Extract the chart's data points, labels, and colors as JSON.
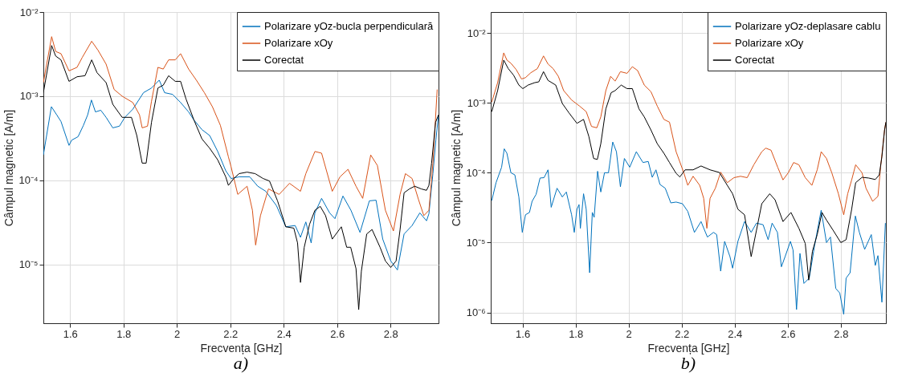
{
  "chart_data": [
    {
      "type": "line",
      "xlabel": "Frecvența [GHz]",
      "ylabel": "Câmpul magnetic [A/m]",
      "annotations": [
        "a)"
      ],
      "log": "y",
      "grid": true,
      "legend": "top right",
      "xlim": [
        1.5,
        2.98
      ],
      "xticks": [
        1.6,
        1.8,
        2,
        2.2,
        2.4,
        2.6,
        2.8
      ],
      "ylim": [
        2e-06,
        0.01
      ],
      "yticks": [
        {
          "value": 1e-05,
          "label": "10⁻⁵"
        },
        {
          "value": 0.0001,
          "label": "10⁻⁴"
        },
        {
          "value": 0.001,
          "label": "10⁻³"
        },
        {
          "value": 0.01,
          "label": "10⁻²"
        }
      ],
      "series": [
        {
          "name": "Polarizare yOz-bucla perpendiculară",
          "color": "#0072bd",
          "x": [
            1.5,
            1.53,
            1.55,
            1.566,
            1.596,
            1.606,
            1.63,
            1.65,
            1.666,
            1.68,
            1.695,
            1.715,
            1.735,
            1.76,
            1.785,
            1.805,
            1.835,
            1.875,
            1.905,
            1.934,
            1.954,
            1.984,
            2.014,
            2.044,
            2.064,
            2.094,
            2.123,
            2.153,
            2.183,
            2.203,
            2.233,
            2.273,
            2.303,
            2.333,
            2.373,
            2.408,
            2.443,
            2.463,
            2.483,
            2.503,
            2.517,
            2.542,
            2.572,
            2.592,
            2.622,
            2.652,
            2.686,
            2.721,
            2.746,
            2.771,
            2.801,
            2.826,
            2.851,
            2.881,
            2.91,
            2.935,
            2.944,
            2.959,
            2.97,
            2.98
          ],
          "values": [
            0.0002,
            0.00075,
            0.0006,
            0.0005,
            0.00026,
            0.0003,
            0.00033,
            0.00045,
            0.0006,
            0.0009,
            0.00065,
            0.00068,
            0.00056,
            0.00042,
            0.00044,
            0.00056,
            0.0007,
            0.0011,
            0.00125,
            0.00155,
            0.0011,
            0.00105,
            0.00084,
            0.00065,
            0.00052,
            0.0004,
            0.00034,
            0.00022,
            0.00013,
            0.000105,
            0.00011,
            0.00011,
            8.5e-05,
            7.4e-05,
            5e-05,
            2.8e-05,
            2.9e-05,
            2.1e-05,
            3.2e-05,
            1.8e-05,
            4.1e-05,
            6.1e-05,
            4.1e-05,
            3.5e-05,
            6.5e-05,
            4.4e-05,
            2.4e-05,
            5.7e-05,
            5.8e-05,
            2e-05,
            1.1e-05,
            8.6e-06,
            2.3e-05,
            2.9e-05,
            4.1e-05,
            3.3e-05,
            4e-05,
            0.00012,
            0.0003,
            0.0006
          ]
        },
        {
          "name": "Polarizare xOy",
          "color": "#d95319",
          "x": [
            1.5,
            1.531,
            1.546,
            1.566,
            1.596,
            1.626,
            1.646,
            1.681,
            1.705,
            1.735,
            1.765,
            1.795,
            1.835,
            1.86,
            1.87,
            1.89,
            1.905,
            1.929,
            1.949,
            1.969,
            1.994,
            2.014,
            2.044,
            2.073,
            2.103,
            2.133,
            2.163,
            2.193,
            2.203,
            2.228,
            2.263,
            2.283,
            2.295,
            2.313,
            2.343,
            2.383,
            2.422,
            2.463,
            2.483,
            2.517,
            2.542,
            2.582,
            2.611,
            2.641,
            2.671,
            2.696,
            2.726,
            2.751,
            2.781,
            2.811,
            2.836,
            2.856,
            2.881,
            2.905,
            2.925,
            2.944,
            2.959,
            2.975
          ],
          "values": [
            0.00145,
            0.0051,
            0.0034,
            0.0032,
            0.002,
            0.0022,
            0.0029,
            0.0045,
            0.0035,
            0.0024,
            0.0012,
            0.001,
            0.00084,
            0.0006,
            0.00042,
            0.00044,
            0.00087,
            0.0022,
            0.0021,
            0.0027,
            0.0027,
            0.0032,
            0.0021,
            0.00155,
            0.0011,
            0.00075,
            0.00045,
            0.00019,
            0.000145,
            6.8e-05,
            8.5e-05,
            4.4e-05,
            1.7e-05,
            3.8e-05,
            7.9e-05,
            6.8e-05,
            9.2e-05,
            7.4e-05,
            0.00012,
            0.00022,
            0.00021,
            7.4e-05,
            0.00011,
            0.000135,
            8.5e-05,
            6.1e-05,
            0.0002,
            0.00015,
            4.4e-05,
            2.5e-05,
            6.8e-05,
            0.00012,
            0.000105,
            5.9e-05,
            3.8e-05,
            4.4e-05,
            0.00016,
            0.0012
          ]
        },
        {
          "name": "Corectat",
          "color": "#000000",
          "x": [
            1.5,
            1.531,
            1.546,
            1.566,
            1.596,
            1.626,
            1.656,
            1.681,
            1.701,
            1.735,
            1.76,
            1.795,
            1.83,
            1.85,
            1.87,
            1.885,
            1.905,
            1.929,
            1.949,
            1.969,
            1.994,
            2.014,
            2.034,
            2.064,
            2.094,
            2.123,
            2.153,
            2.183,
            2.193,
            2.213,
            2.233,
            2.263,
            2.293,
            2.323,
            2.347,
            2.377,
            2.408,
            2.438,
            2.452,
            2.463,
            2.477,
            2.497,
            2.517,
            2.537,
            2.557,
            2.582,
            2.616,
            2.636,
            2.651,
            2.671,
            2.681,
            2.691,
            2.711,
            2.731,
            2.761,
            2.781,
            2.801,
            2.821,
            2.836,
            2.851,
            2.871,
            2.891,
            2.915,
            2.935,
            2.944,
            2.954,
            2.969,
            2.98
          ],
          "values": [
            0.0011,
            0.004,
            0.003,
            0.0027,
            0.0015,
            0.0017,
            0.00175,
            0.0027,
            0.0019,
            0.00145,
            0.0008,
            0.00056,
            0.00056,
            0.00034,
            0.00016,
            0.00016,
            0.00049,
            0.00125,
            0.00135,
            0.00175,
            0.0015,
            0.0015,
            0.00093,
            0.00052,
            0.00031,
            0.00024,
            0.000175,
            0.00011,
            8.7e-05,
            0.000105,
            0.00012,
            0.000125,
            0.00012,
            0.000105,
            9.8e-05,
            5.7e-05,
            2.8e-05,
            2.7e-05,
            1.8e-05,
            6.1e-06,
            1.6e-05,
            3e-05,
            4.4e-05,
            4.9e-05,
            3.8e-05,
            2e-05,
            2.8e-05,
            1.6e-05,
            1.6e-05,
            8.9e-06,
            2.9e-06,
            8.3e-06,
            2.3e-05,
            2.6e-05,
            1.6e-05,
            1.1e-05,
            9.2e-06,
            1.1e-05,
            2.6e-05,
            7.1e-05,
            7.9e-05,
            8.5e-05,
            7.9e-05,
            7.6e-05,
            8.7e-05,
            0.00016,
            0.00049,
            0.0006
          ]
        }
      ]
    },
    {
      "type": "line",
      "xlabel": "Frecvența [GHz]",
      "ylabel": "Câmpul magnetic [A/m]",
      "annotations": [
        "b)"
      ],
      "log": "y",
      "grid": true,
      "legend": "top right",
      "xlim": [
        1.48,
        2.97
      ],
      "xticks": [
        1.6,
        1.8,
        2,
        2.2,
        2.4,
        2.6,
        2.8
      ],
      "ylim": [
        7e-07,
        0.02
      ],
      "yticks": [
        {
          "value": 1e-06,
          "label": "10⁻⁶"
        },
        {
          "value": 1e-05,
          "label": "10⁻⁵"
        },
        {
          "value": 0.0001,
          "label": "10⁻⁴"
        },
        {
          "value": 0.001,
          "label": "10⁻³"
        },
        {
          "value": 0.01,
          "label": "10⁻²"
        }
      ],
      "series": [
        {
          "name": "Polarizare yOz-deplasare cablu",
          "color": "#0072bd",
          "x": [
            1.484,
            1.5,
            1.521,
            1.531,
            1.541,
            1.556,
            1.571,
            1.586,
            1.599,
            1.611,
            1.626,
            1.636,
            1.651,
            1.666,
            1.681,
            1.696,
            1.708,
            1.73,
            1.75,
            1.765,
            1.785,
            1.795,
            1.805,
            1.813,
            1.818,
            1.83,
            1.84,
            1.853,
            1.863,
            1.87,
            1.883,
            1.895,
            1.909,
            1.924,
            1.94,
            1.954,
            1.969,
            1.984,
            2.004,
            2.029,
            2.054,
            2.074,
            2.089,
            2.103,
            2.118,
            2.138,
            2.159,
            2.179,
            2.203,
            2.223,
            2.248,
            2.273,
            2.297,
            2.32,
            2.332,
            2.347,
            2.362,
            2.382,
            2.392,
            2.412,
            2.437,
            2.462,
            2.482,
            2.507,
            2.526,
            2.541,
            2.561,
            2.576,
            2.59,
            2.61,
            2.62,
            2.633,
            2.646,
            2.661,
            2.681,
            2.701,
            2.726,
            2.746,
            2.761,
            2.781,
            2.796,
            2.811,
            2.82,
            2.835,
            2.855,
            2.87,
            2.89,
            2.915,
            2.93,
            2.94,
            2.955,
            2.968
          ],
          "values": [
            4e-05,
            7.2e-05,
            0.00012,
            0.00022,
            0.00019,
            0.0001,
            9.3e-05,
            4.5e-05,
            1.4e-05,
            2.5e-05,
            2.7e-05,
            3.9e-05,
            4.9e-05,
            8.4e-05,
            8.5e-05,
            0.00011,
            3.2e-05,
            6e-05,
            4.5e-05,
            5.3e-05,
            2.5e-05,
            1.4e-05,
            3e-05,
            3.5e-05,
            1.6e-05,
            5e-05,
            3e-05,
            3.7e-06,
            2.7e-05,
            2.3e-05,
            0.000105,
            5.3e-05,
            0.0001,
            0.0001,
            0.000275,
            0.0002,
            6.3e-05,
            0.00016,
            0.00012,
            0.0002,
            0.00014,
            0.000145,
            8.6e-05,
            0.00011,
            6.8e-05,
            6e-05,
            3.7e-05,
            3.8e-05,
            3.6e-05,
            2.8e-05,
            1.4e-05,
            2e-05,
            1.2e-05,
            1.4e-05,
            1.3e-05,
            3.9e-06,
            1.04e-05,
            6.3e-06,
            4.3e-06,
            1.04e-05,
            2e-05,
            1.4e-05,
            1.9e-05,
            1.8e-05,
            1.1e-05,
            1.9e-05,
            1.4e-05,
            4.5e-06,
            6.3e-06,
            1.04e-05,
            7.8e-06,
            1.1e-06,
            7e-06,
            2.6e-06,
            3.1e-06,
            9e-06,
            2.9e-05,
            1e-05,
            1.2e-05,
            2.2e-06,
            1.9e-06,
            9.4e-07,
            3.1e-06,
            3.7e-06,
            2.4e-05,
            1.4e-05,
            8e-06,
            1.3e-05,
            4.7e-06,
            6.5e-06,
            1.4e-06,
            1.9e-05
          ]
        },
        {
          "name": "Polarizare xOy",
          "color": "#d95319",
          "x": [
            1.484,
            1.506,
            1.529,
            1.541,
            1.556,
            1.576,
            1.596,
            1.611,
            1.631,
            1.656,
            1.679,
            1.696,
            1.715,
            1.735,
            1.755,
            1.785,
            1.815,
            1.84,
            1.86,
            1.88,
            1.895,
            1.914,
            1.932,
            1.949,
            1.969,
            1.994,
            2.014,
            2.034,
            2.059,
            2.084,
            2.108,
            2.133,
            2.154,
            2.179,
            2.208,
            2.223,
            2.243,
            2.268,
            2.283,
            2.295,
            2.307,
            2.327,
            2.347,
            2.372,
            2.397,
            2.422,
            2.447,
            2.472,
            2.502,
            2.517,
            2.537,
            2.562,
            2.582,
            2.602,
            2.622,
            2.642,
            2.666,
            2.691,
            2.711,
            2.726,
            2.746,
            2.766,
            2.791,
            2.811,
            2.826,
            2.841,
            2.856,
            2.88,
            2.895,
            2.92,
            2.94,
            2.95,
            2.965,
            2.97
          ],
          "values": [
            0.00103,
            0.00195,
            0.0052,
            0.0041,
            0.0037,
            0.003,
            0.0022,
            0.0023,
            0.0027,
            0.0031,
            0.0047,
            0.0036,
            0.0031,
            0.0024,
            0.0015,
            0.0011,
            0.0009,
            0.00075,
            0.00046,
            0.00044,
            0.00063,
            0.0015,
            0.0024,
            0.00205,
            0.0028,
            0.00265,
            0.0033,
            0.0029,
            0.0018,
            0.00145,
            0.0009,
            0.00058,
            0.00053,
            0.0002,
            0.0001,
            6.6e-05,
            8.9e-05,
            6.6e-05,
            4.3e-05,
            1.6e-05,
            4.3e-05,
            6e-05,
            0.000102,
            7.2e-05,
            8.5e-05,
            8.9e-05,
            8.5e-05,
            0.00013,
            0.0002,
            0.000225,
            0.00021,
            0.00012,
            7.9e-05,
            0.0001,
            0.00014,
            0.00013,
            8.5e-05,
            6.6e-05,
            0.00011,
            0.0002,
            0.00016,
            0.0001,
            5e-05,
            2.5e-05,
            5e-05,
            7.9e-05,
            0.00013,
            0.0001,
            6e-05,
            3.9e-05,
            4.6e-05,
            0.00012,
            0.00041,
            0.00053
          ]
        },
        {
          "name": "Corectat",
          "color": "#000000",
          "x": [
            1.484,
            1.506,
            1.529,
            1.546,
            1.566,
            1.586,
            1.601,
            1.621,
            1.646,
            1.661,
            1.679,
            1.696,
            1.725,
            1.75,
            1.775,
            1.805,
            1.83,
            1.85,
            1.868,
            1.882,
            1.895,
            1.914,
            1.934,
            1.949,
            1.972,
            1.994,
            2.014,
            2.039,
            2.059,
            2.084,
            2.108,
            2.133,
            2.154,
            2.179,
            2.193,
            2.213,
            2.243,
            2.273,
            2.307,
            2.342,
            2.372,
            2.392,
            2.412,
            2.437,
            2.462,
            2.482,
            2.502,
            2.532,
            2.552,
            2.582,
            2.612,
            2.642,
            2.666,
            2.679,
            2.693,
            2.711,
            2.729,
            2.746,
            2.771,
            2.8,
            2.82,
            2.841,
            2.856,
            2.88,
            2.905,
            2.93,
            2.945,
            2.955,
            2.965,
            2.97
          ],
          "values": [
            0.00075,
            0.0015,
            0.0041,
            0.0031,
            0.0025,
            0.0018,
            0.0016,
            0.0018,
            0.00195,
            0.002,
            0.0028,
            0.0021,
            0.0018,
            0.00098,
            0.00072,
            0.00051,
            0.00058,
            0.00033,
            0.00016,
            0.000155,
            0.00026,
            0.00082,
            0.0014,
            0.0015,
            0.0018,
            0.0016,
            0.0016,
            0.00082,
            0.00063,
            0.00041,
            0.00026,
            0.00019,
            0.00014,
            9.8e-05,
            8.7e-05,
            0.00011,
            0.00011,
            0.000125,
            0.00011,
            0.000101,
            6.6e-05,
            5e-05,
            3e-05,
            2.5e-05,
            6.3e-06,
            1.5e-05,
            3.6e-05,
            5e-05,
            4.1e-05,
            2e-05,
            2.7e-05,
            1.6e-05,
            9.7e-06,
            2.9e-06,
            7.5e-06,
            1.3e-05,
            2.7e-05,
            2.1e-05,
            1.5e-05,
            1e-05,
            1.1e-05,
            3e-05,
            7.2e-05,
            8.6e-05,
            8.4e-05,
            8e-05,
            9.3e-05,
            0.00017,
            0.00041,
            0.00053
          ]
        }
      ]
    }
  ]
}
